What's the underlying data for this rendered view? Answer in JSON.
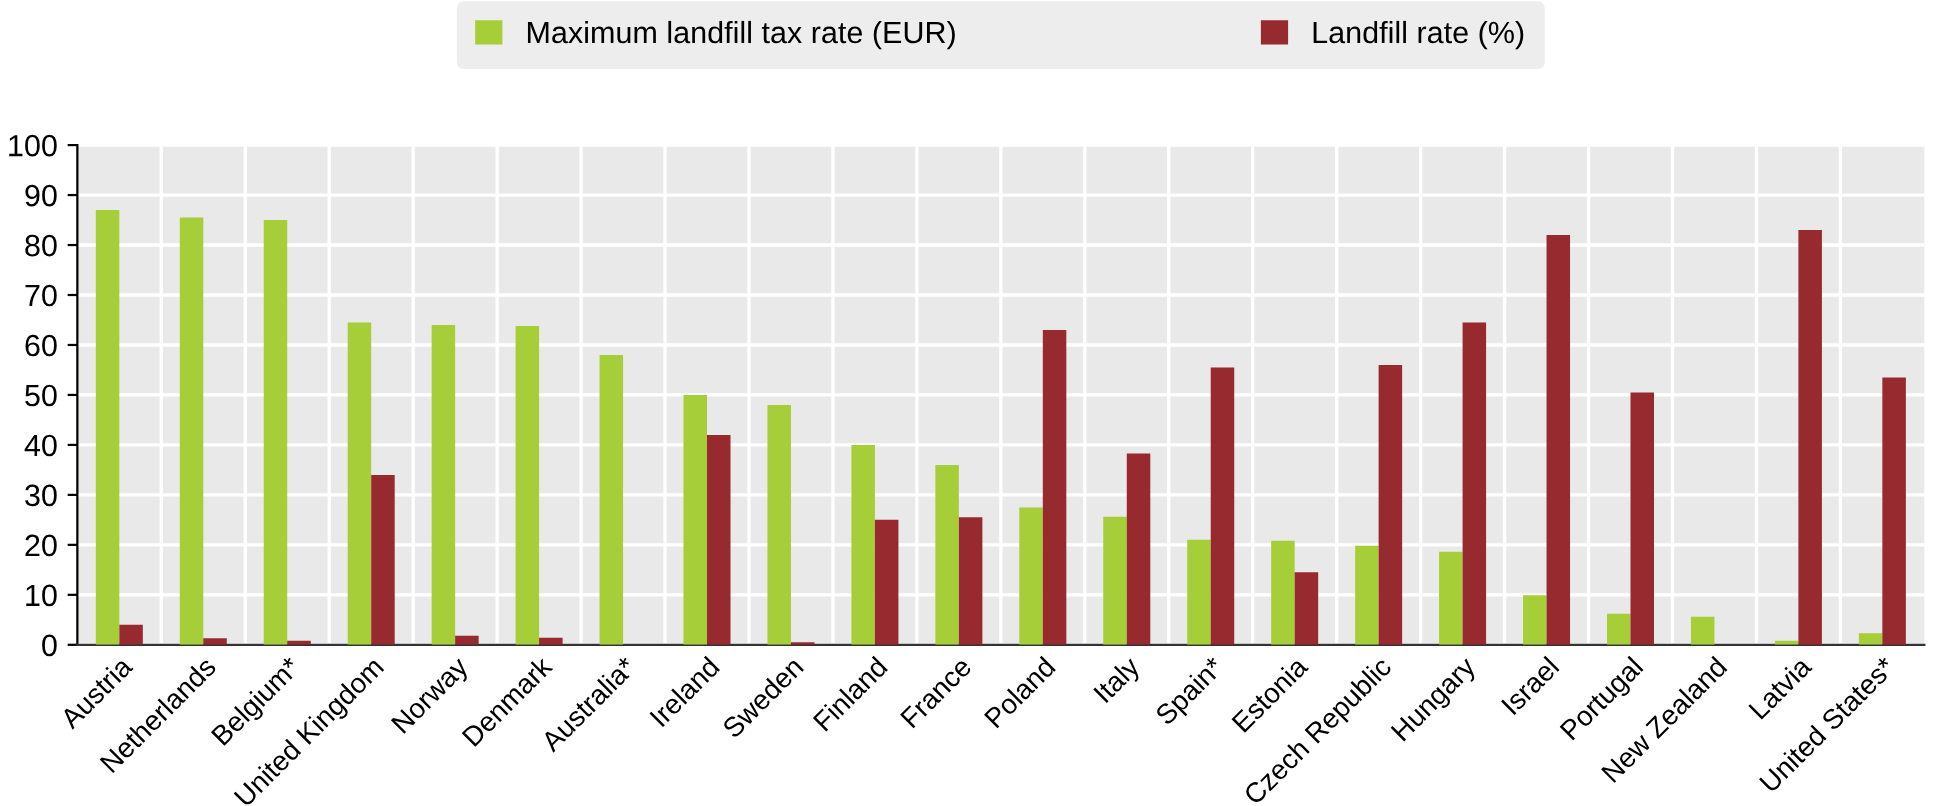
{
  "chart_data": {
    "type": "bar",
    "categories": [
      "Austria",
      "Netherlands",
      "Belgium*",
      "United Kingdom",
      "Norway",
      "Denmark",
      "Australia*",
      "Ireland",
      "Sweden",
      "Finland",
      "France",
      "Poland",
      "Italy",
      "Spain*",
      "Estonia",
      "Czech Republic",
      "Hungary",
      "Israel",
      "Portugal",
      "New Zealand",
      "Latvia",
      "United States*"
    ],
    "series": [
      {
        "name": "Maximum landfill tax rate (EUR)",
        "color": "#a6ce39",
        "values": [
          87,
          85.5,
          85,
          64.5,
          64,
          63.8,
          58,
          50,
          48,
          40,
          36,
          27.5,
          25.6,
          21,
          20.8,
          19.8,
          18.6,
          9.9,
          6.2,
          5.6,
          0.8,
          2.3
        ]
      },
      {
        "name": "Landfill rate (%)",
        "color": "#962a2e",
        "values": [
          4,
          1.3,
          0.8,
          34,
          1.8,
          1.4,
          null,
          42,
          0.5,
          25,
          25.5,
          63,
          38.3,
          55.5,
          14.5,
          56,
          64.5,
          82,
          50.5,
          null,
          83,
          53.5
        ]
      }
    ],
    "ylim": [
      0,
      100
    ],
    "yticks": [
      0,
      10,
      20,
      30,
      40,
      50,
      60,
      70,
      80,
      90,
      100
    ],
    "grid": true,
    "legend": "top"
  }
}
